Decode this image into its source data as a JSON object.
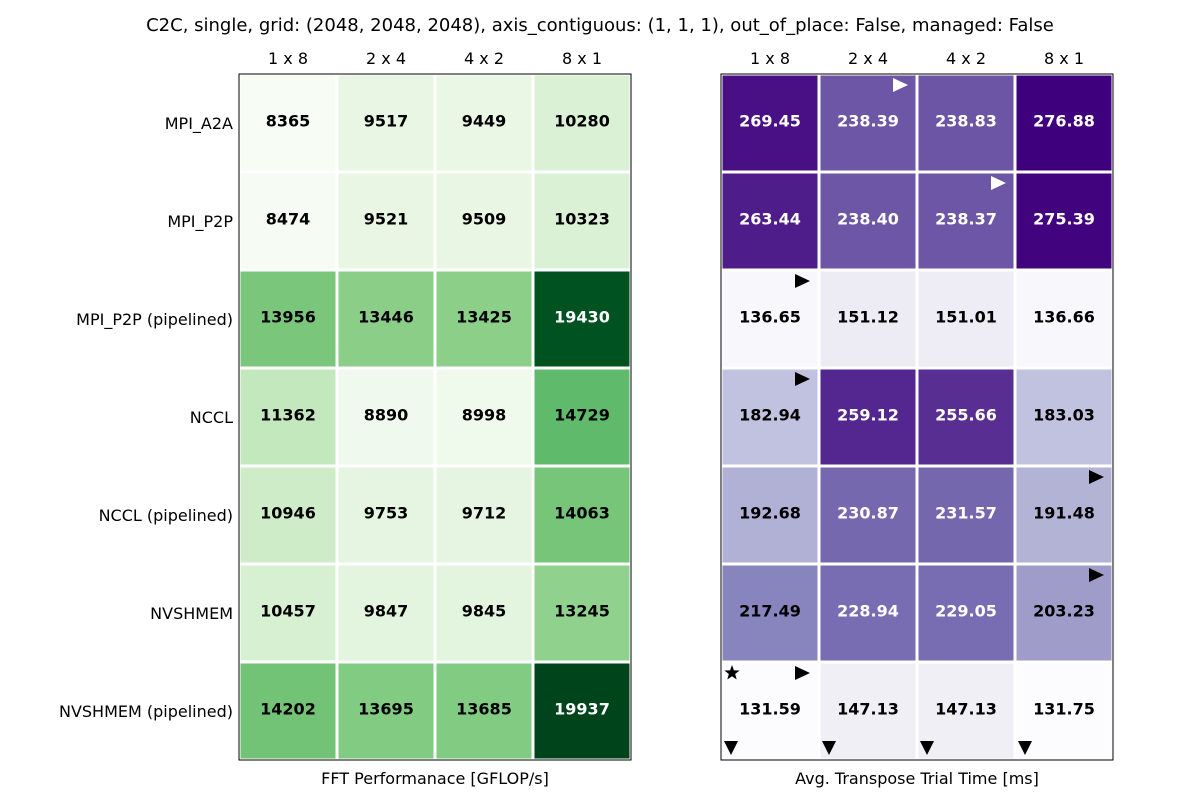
{
  "chart_data": {
    "title": "C2C, single, grid: (2048, 2048, 2048), axis_contiguous: (1, 1, 1), out_of_place: False, managed: False",
    "panels": [
      {
        "type": "heatmap",
        "xlabel": "FFT Performanace [GFLOP/s]",
        "colormap": "Greens",
        "columns": [
          "1 x 8",
          "2 x 4",
          "4 x 2",
          "8 x 1"
        ],
        "rows": [
          "MPI_A2A",
          "MPI_P2P",
          "MPI_P2P (pipelined)",
          "NCCL",
          "NCCL (pipelined)",
          "NVSHMEM",
          "NVSHMEM (pipelined)"
        ],
        "values": [
          [
            8365,
            9517,
            9449,
            10280
          ],
          [
            8474,
            9521,
            9509,
            10323
          ],
          [
            13956,
            13446,
            13425,
            19430
          ],
          [
            11362,
            8890,
            8998,
            14729
          ],
          [
            10946,
            9753,
            9712,
            14063
          ],
          [
            10457,
            9847,
            9845,
            13245
          ],
          [
            14202,
            13695,
            13685,
            19937
          ]
        ],
        "labels": [
          [
            "8365",
            "9517",
            "9449",
            "10280"
          ],
          [
            "8474",
            "9521",
            "9509",
            "10323"
          ],
          [
            "13956",
            "13446",
            "13425",
            "19430"
          ],
          [
            "11362",
            "8890",
            "8998",
            "14729"
          ],
          [
            "10946",
            "9753",
            "9712",
            "14063"
          ],
          [
            "10457",
            "9847",
            "9845",
            "13245"
          ],
          [
            "14202",
            "13695",
            "13685",
            "19937"
          ]
        ]
      },
      {
        "type": "heatmap",
        "xlabel": "Avg. Transpose Trial Time [ms]",
        "colormap": "Purples",
        "columns": [
          "1 x 8",
          "2 x 4",
          "4 x 2",
          "8 x 1"
        ],
        "rows": [],
        "values": [
          [
            269.45,
            238.39,
            238.83,
            276.88
          ],
          [
            263.44,
            238.4,
            238.37,
            275.39
          ],
          [
            136.65,
            151.12,
            151.01,
            136.66
          ],
          [
            182.94,
            259.12,
            255.66,
            183.03
          ],
          [
            192.68,
            230.87,
            231.57,
            191.48
          ],
          [
            217.49,
            228.94,
            229.05,
            203.23
          ],
          [
            131.59,
            147.13,
            147.13,
            131.75
          ]
        ],
        "labels": [
          [
            "269.45",
            "238.39",
            "238.83",
            "276.88"
          ],
          [
            "263.44",
            "238.40",
            "238.37",
            "275.39"
          ],
          [
            "136.65",
            "151.12",
            "151.01",
            "136.66"
          ],
          [
            "182.94",
            "259.12",
            "255.66",
            "183.03"
          ],
          [
            "192.68",
            "230.87",
            "231.57",
            "191.48"
          ],
          [
            "217.49",
            "228.94",
            "229.05",
            "203.23"
          ],
          [
            "131.59",
            "147.13",
            "147.13",
            "131.75"
          ]
        ],
        "markers": {
          "best_row_per_column": [
            "triangle-down",
            "triangle-down",
            "triangle-down",
            "triangle-down"
          ],
          "right_triangle_cells": [
            [
              0,
              1
            ],
            [
              1,
              2
            ],
            [
              2,
              0
            ],
            [
              3,
              0
            ],
            [
              4,
              3
            ],
            [
              5,
              3
            ],
            [
              6,
              0
            ]
          ],
          "star_cells": [
            [
              6,
              0
            ]
          ]
        }
      }
    ]
  }
}
